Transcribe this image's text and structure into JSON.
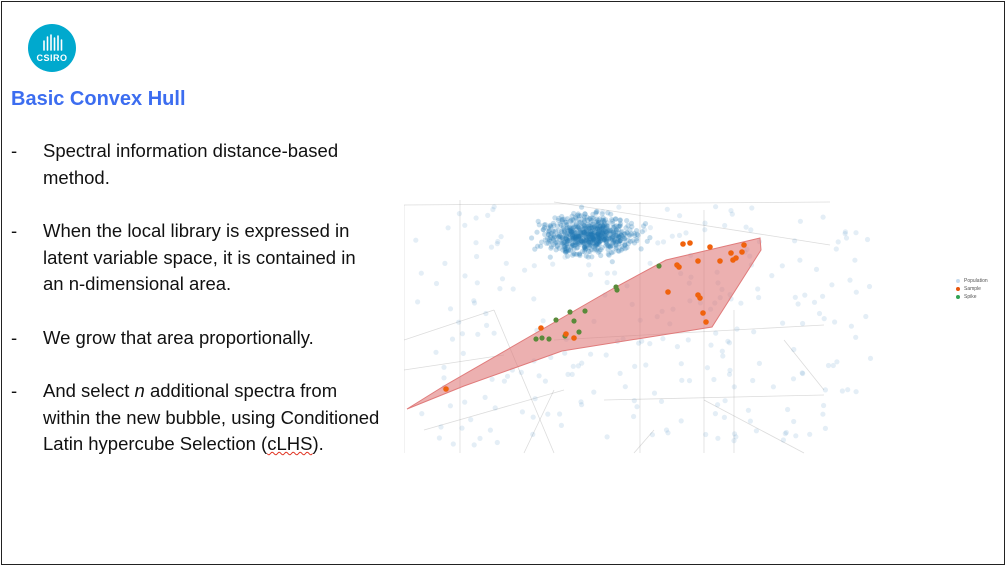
{
  "logo": {
    "text": "CSIRO",
    "color": "#00a9ce"
  },
  "slide": {
    "title": "Basic Convex Hull",
    "title_color": "#3c6df0",
    "bullets": [
      {
        "dash": "-",
        "text": "Spectral information distance-based method."
      },
      {
        "dash": "-",
        "text": "When the local library is expressed in latent variable space, it is contained in an n-dimensional area."
      },
      {
        "dash": "-",
        "text": "We grow that area proportionally."
      },
      {
        "dash": "-",
        "before": "And select ",
        "italic": "n",
        "middle": " additional spectra from within the new bubble, using Conditioned Latin hypercube Selection (",
        "squiggle": "cLHS",
        "after": ")."
      }
    ]
  },
  "legend": [
    {
      "label": "Population",
      "color": "#c6dbef"
    },
    {
      "label": "Sample",
      "color": "#e6550d"
    },
    {
      "label": "Spike",
      "color": "#31a354"
    }
  ],
  "colors": {
    "population": "#1f77b4",
    "sample": "#f0620c",
    "spike": "#5a8a3a",
    "hull": "#e07b7b",
    "grid": "#9a9a9a"
  }
}
